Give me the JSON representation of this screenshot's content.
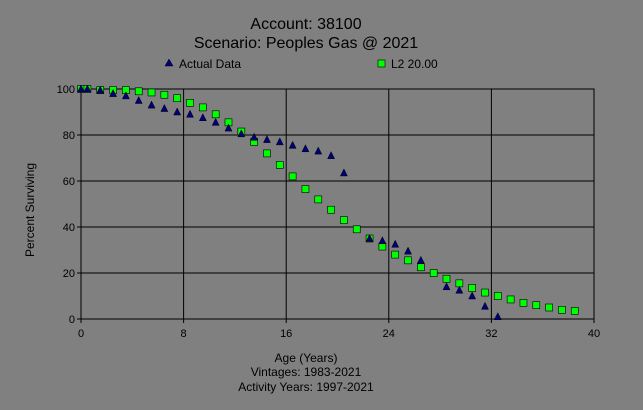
{
  "chart_data": {
    "type": "scatter",
    "title": "Account: 38100",
    "subtitle": "Scenario: Peoples Gas @ 2021",
    "xlabel": "Age (Years)",
    "ylabel": "Percent Surviving",
    "footnotes": [
      "Vintages: 1983-2021",
      "Activity Years: 1997-2021"
    ],
    "xlim": [
      0,
      40
    ],
    "ylim": [
      0,
      100
    ],
    "xticks": [
      0,
      8,
      16,
      24,
      32,
      40
    ],
    "yticks": [
      0,
      20,
      40,
      60,
      80,
      100
    ],
    "grid": true,
    "legend_placement": "top",
    "series": [
      {
        "name": "Actual Data",
        "marker": "triangle",
        "color": "#00007a",
        "points": [
          [
            0,
            100
          ],
          [
            0.5,
            100
          ],
          [
            1.5,
            99.5
          ],
          [
            2.5,
            98
          ],
          [
            3.5,
            97
          ],
          [
            4.5,
            95
          ],
          [
            5.5,
            93
          ],
          [
            6.5,
            91.5
          ],
          [
            7.5,
            90
          ],
          [
            8.5,
            89
          ],
          [
            9.5,
            87.5
          ],
          [
            10.5,
            85.5
          ],
          [
            11.5,
            83
          ],
          [
            12.5,
            80.5
          ],
          [
            13.5,
            79
          ],
          [
            14.5,
            78
          ],
          [
            15.5,
            77
          ],
          [
            16.5,
            75.5
          ],
          [
            17.5,
            74
          ],
          [
            18.5,
            73
          ],
          [
            19.5,
            71
          ],
          [
            20.5,
            63.5
          ],
          [
            22.5,
            35
          ],
          [
            23.5,
            34
          ],
          [
            24.5,
            32.5
          ],
          [
            25.5,
            29.5
          ],
          [
            26.5,
            25.5
          ],
          [
            28.5,
            14
          ],
          [
            29.5,
            12.5
          ],
          [
            30.5,
            10
          ],
          [
            31.5,
            5.5
          ],
          [
            32.5,
            1
          ]
        ]
      },
      {
        "name": "L2 20.00",
        "marker": "square",
        "color": "#00ff00",
        "points": [
          [
            0,
            100
          ],
          [
            0.5,
            100
          ],
          [
            1.5,
            99.5
          ],
          [
            2.5,
            99.5
          ],
          [
            3.5,
            99.5
          ],
          [
            4.5,
            99
          ],
          [
            5.5,
            98.5
          ],
          [
            6.5,
            97.5
          ],
          [
            7.5,
            96
          ],
          [
            8.5,
            94
          ],
          [
            9.5,
            92
          ],
          [
            10.5,
            89
          ],
          [
            11.5,
            85.5
          ],
          [
            12.5,
            81.5
          ],
          [
            13.5,
            77
          ],
          [
            14.5,
            72
          ],
          [
            15.5,
            67
          ],
          [
            16.5,
            62
          ],
          [
            17.5,
            56.5
          ],
          [
            18.5,
            52
          ],
          [
            19.5,
            47.5
          ],
          [
            20.5,
            43
          ],
          [
            21.5,
            39
          ],
          [
            22.5,
            35
          ],
          [
            23.5,
            31.5
          ],
          [
            24.5,
            28
          ],
          [
            25.5,
            25.5
          ],
          [
            26.5,
            22.5
          ],
          [
            27.5,
            20
          ],
          [
            28.5,
            17.5
          ],
          [
            29.5,
            15.5
          ],
          [
            30.5,
            13.5
          ],
          [
            31.5,
            11.5
          ],
          [
            32.5,
            10
          ],
          [
            33.5,
            8.5
          ],
          [
            34.5,
            7
          ],
          [
            35.5,
            6
          ],
          [
            36.5,
            5
          ],
          [
            37.5,
            4
          ],
          [
            38.5,
            3.5
          ]
        ]
      }
    ]
  }
}
